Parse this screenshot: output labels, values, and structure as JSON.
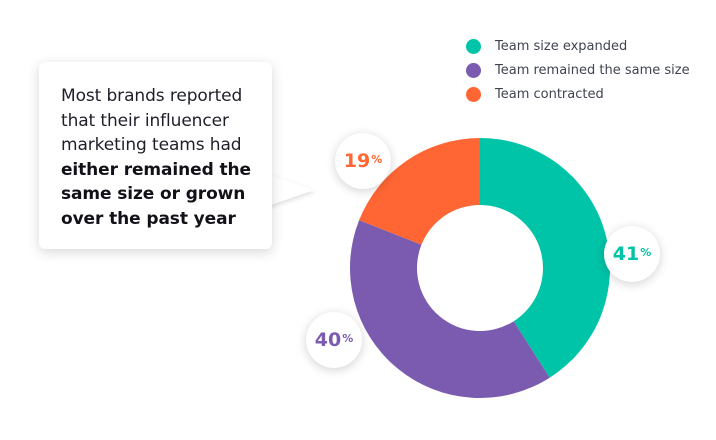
{
  "chart_data": {
    "type": "pie",
    "categories": [
      "Team size expanded",
      "Team remained the same size",
      "Team contracted"
    ],
    "values": [
      41,
      40,
      19
    ],
    "unit": "%",
    "colors": [
      "#00c4a7",
      "#7b5bb0",
      "#ff6634"
    ],
    "donut": true,
    "legend_position": "top-right"
  },
  "legend": {
    "items": [
      {
        "label": "Team size expanded",
        "color": "#00c4a7"
      },
      {
        "label": "Team remained the same size",
        "color": "#7b5bb0"
      },
      {
        "label": "Team contracted",
        "color": "#ff6634"
      }
    ]
  },
  "callout": {
    "text_plain": "Most brands reported that their influencer marketing teams had",
    "text_bold": "either remained the same size or grown over the past year"
  },
  "labels": {
    "expanded": {
      "value": "41",
      "unit": "%"
    },
    "same": {
      "value": "40",
      "unit": "%"
    },
    "contracted": {
      "value": "19",
      "unit": "%"
    }
  }
}
